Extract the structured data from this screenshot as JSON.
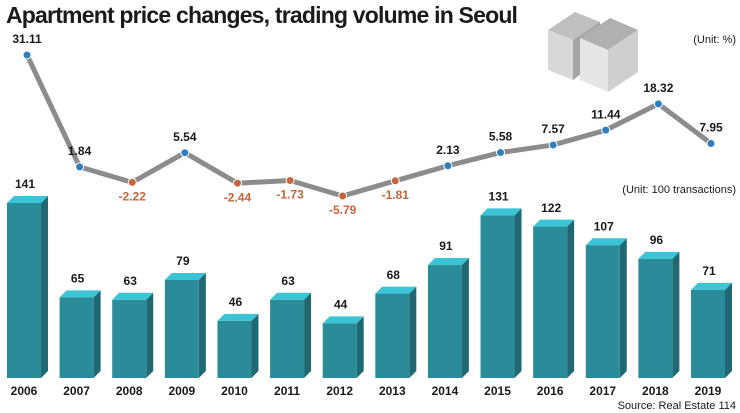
{
  "title": "Apartment price changes, trading volume in Seoul",
  "source": "Source: Real Estate 114",
  "chart_data": [
    {
      "type": "line",
      "unit": "(Unit: %)",
      "color": "#8c8c8c",
      "positive_color": "#2f7fc0",
      "negative_color": "#c8643c",
      "values": [
        31.11,
        1.84,
        -2.22,
        5.54,
        -2.44,
        -1.73,
        -5.79,
        -1.81,
        2.13,
        5.58,
        7.57,
        11.44,
        18.32,
        7.95
      ]
    },
    {
      "type": "bar",
      "unit": "(Unit: 100 transactions)",
      "color": "#2a8c99",
      "categories": [
        "2006",
        "2007",
        "2008",
        "2009",
        "2010",
        "2011",
        "2012",
        "2013",
        "2014",
        "2015",
        "2016",
        "2017",
        "2018",
        "2019"
      ],
      "values": [
        141,
        65,
        63,
        79,
        46,
        63,
        44,
        68,
        91,
        131,
        122,
        107,
        96,
        71
      ]
    }
  ]
}
